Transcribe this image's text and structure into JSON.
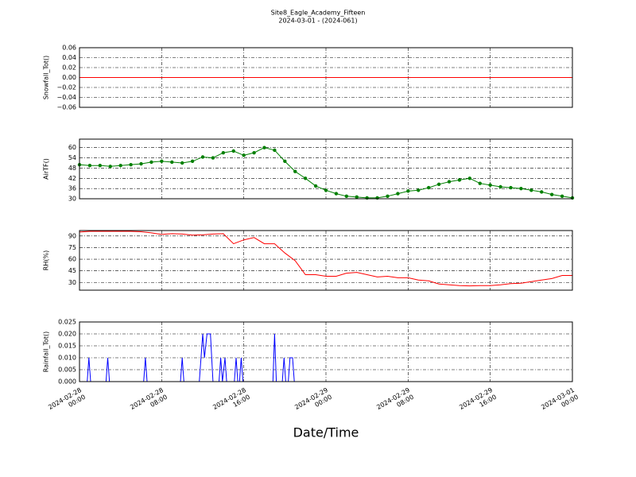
{
  "title": "Site8_Eagle_Academy_Fifteen",
  "subtitle": "2024-03-01 - (2024-061)",
  "x_axis": {
    "label": "Date/Time",
    "xlim": [
      "2024-02-28 00:00",
      "2024-03-01 00:00"
    ],
    "xticks": [
      {
        "value": "2024-02-28 00:00",
        "label": "2024-02-28\n00:00"
      },
      {
        "value": "2024-02-28 08:00",
        "label": "2024-02-28\n08:00"
      },
      {
        "value": "2024-02-28 16:00",
        "label": "2024-02-28\n16:00"
      },
      {
        "value": "2024-02-29 00:00",
        "label": "2024-02-29\n00:00"
      },
      {
        "value": "2024-02-29 08:00",
        "label": "2024-02-29\n08:00"
      },
      {
        "value": "2024-02-29 16:00",
        "label": "2024-02-29\n16:00"
      },
      {
        "value": "2024-03-01 00:00",
        "label": "2024-03-01\n00:00"
      }
    ]
  },
  "chart_data": [
    {
      "type": "line",
      "ylabel": "Snowfall_Tot()",
      "color": "#ff0000",
      "grid": true,
      "ylim": [
        -0.06,
        0.06
      ],
      "yticks": [
        {
          "value": -0.06,
          "label": "−0.06"
        },
        {
          "value": -0.04,
          "label": "−0.04"
        },
        {
          "value": -0.02,
          "label": "−0.02"
        },
        {
          "value": 0,
          "label": "0.00"
        },
        0.02,
        0.04,
        0.06
      ],
      "x": [
        "2024-02-28 00:00",
        "2024-03-01 00:00"
      ],
      "values": [
        0,
        0
      ]
    },
    {
      "type": "line",
      "ylabel": "AirTF()",
      "color": "#007f00",
      "marker": "o",
      "grid": true,
      "ylim": [
        30,
        65
      ],
      "yticks": [
        30,
        36,
        42,
        48,
        54,
        60
      ],
      "x": [
        "2024-02-28 00:00",
        "2024-02-28 01:00",
        "2024-02-28 02:00",
        "2024-02-28 03:00",
        "2024-02-28 04:00",
        "2024-02-28 05:00",
        "2024-02-28 06:00",
        "2024-02-28 07:00",
        "2024-02-28 08:00",
        "2024-02-28 09:00",
        "2024-02-28 10:00",
        "2024-02-28 11:00",
        "2024-02-28 12:00",
        "2024-02-28 13:00",
        "2024-02-28 14:00",
        "2024-02-28 15:00",
        "2024-02-28 16:00",
        "2024-02-28 17:00",
        "2024-02-28 18:00",
        "2024-02-28 19:00",
        "2024-02-28 20:00",
        "2024-02-28 21:00",
        "2024-02-28 22:00",
        "2024-02-28 23:00",
        "2024-02-29 00:00",
        "2024-02-29 01:00",
        "2024-02-29 02:00",
        "2024-02-29 03:00",
        "2024-02-29 04:00",
        "2024-02-29 05:00",
        "2024-02-29 06:00",
        "2024-02-29 07:00",
        "2024-02-29 08:00",
        "2024-02-29 09:00",
        "2024-02-29 10:00",
        "2024-02-29 11:00",
        "2024-02-29 12:00",
        "2024-02-29 13:00",
        "2024-02-29 14:00",
        "2024-02-29 15:00",
        "2024-02-29 16:00",
        "2024-02-29 17:00",
        "2024-02-29 18:00",
        "2024-02-29 19:00",
        "2024-02-29 20:00",
        "2024-02-29 21:00",
        "2024-02-29 22:00",
        "2024-02-29 23:00",
        "2024-03-01 00:00"
      ],
      "values": [
        50,
        49.5,
        49.5,
        49,
        49.5,
        50,
        50.5,
        51.5,
        52,
        51.5,
        51,
        52,
        54.5,
        54,
        57,
        58,
        55.5,
        57,
        60,
        58.5,
        52,
        46,
        42,
        37.5,
        35,
        33,
        31.5,
        31,
        30.5,
        30.5,
        31.5,
        33,
        34.5,
        35,
        36.5,
        38.5,
        40,
        41,
        42,
        39,
        38,
        37,
        36.5,
        36,
        35,
        34,
        32.5,
        31.5,
        30.5
      ]
    },
    {
      "type": "line",
      "ylabel": "RH(%)",
      "color": "#ff0000",
      "grid": true,
      "ylim": [
        20,
        97
      ],
      "yticks": [
        30,
        45,
        60,
        75,
        90
      ],
      "x": [
        "2024-02-28 00:00",
        "2024-02-28 01:00",
        "2024-02-28 02:00",
        "2024-02-28 03:00",
        "2024-02-28 04:00",
        "2024-02-28 05:00",
        "2024-02-28 06:00",
        "2024-02-28 07:00",
        "2024-02-28 08:00",
        "2024-02-28 09:00",
        "2024-02-28 10:00",
        "2024-02-28 11:00",
        "2024-02-28 12:00",
        "2024-02-28 13:00",
        "2024-02-28 14:00",
        "2024-02-28 15:00",
        "2024-02-28 16:00",
        "2024-02-28 17:00",
        "2024-02-28 18:00",
        "2024-02-28 19:00",
        "2024-02-28 20:00",
        "2024-02-28 21:00",
        "2024-02-28 22:00",
        "2024-02-28 23:00",
        "2024-02-29 00:00",
        "2024-02-29 01:00",
        "2024-02-29 02:00",
        "2024-02-29 03:00",
        "2024-02-29 04:00",
        "2024-02-29 05:00",
        "2024-02-29 06:00",
        "2024-02-29 07:00",
        "2024-02-29 08:00",
        "2024-02-29 09:00",
        "2024-02-29 10:00",
        "2024-02-29 11:00",
        "2024-02-29 12:00",
        "2024-02-29 13:00",
        "2024-02-29 14:00",
        "2024-02-29 15:00",
        "2024-02-29 16:00",
        "2024-02-29 17:00",
        "2024-02-29 18:00",
        "2024-02-29 19:00",
        "2024-02-29 20:00",
        "2024-02-29 21:00",
        "2024-02-29 22:00",
        "2024-02-29 23:00",
        "2024-03-01 00:00"
      ],
      "values": [
        95,
        96,
        96,
        96,
        96,
        96,
        95.5,
        94,
        92,
        93,
        92.5,
        91,
        91.5,
        92.5,
        93,
        80,
        85,
        88,
        80,
        80,
        68,
        58,
        40,
        40,
        38,
        38,
        42,
        43,
        40,
        37,
        38,
        36,
        36,
        33,
        32,
        28,
        27,
        26,
        25.5,
        26,
        26,
        27,
        28.5,
        29,
        31,
        33,
        35,
        39,
        39
      ]
    },
    {
      "type": "line",
      "ylabel": "Rainfall_Tot()",
      "color": "#0000ff",
      "grid": true,
      "ylim": [
        0,
        0.025
      ],
      "yticks": [
        {
          "value": 0,
          "label": "0.000"
        },
        0.005,
        {
          "value": 0.01,
          "label": "0.010"
        },
        0.015,
        {
          "value": 0.02,
          "label": "0.020"
        },
        0.025
      ],
      "x": [
        "2024-02-28 00:00",
        "2024-02-28 00:45",
        "2024-02-28 00:55",
        "2024-02-28 01:05",
        "2024-02-28 02:35",
        "2024-02-28 02:45",
        "2024-02-28 02:55",
        "2024-02-28 06:15",
        "2024-02-28 06:25",
        "2024-02-28 06:35",
        "2024-02-28 09:50",
        "2024-02-28 10:00",
        "2024-02-28 10:10",
        "2024-02-28 11:40",
        "2024-02-28 12:00",
        "2024-02-28 12:10",
        "2024-02-28 12:25",
        "2024-02-28 12:45",
        "2024-02-28 13:00",
        "2024-02-28 13:35",
        "2024-02-28 13:45",
        "2024-02-28 13:55",
        "2024-02-28 14:10",
        "2024-02-28 14:20",
        "2024-02-28 15:05",
        "2024-02-28 15:15",
        "2024-02-28 15:25",
        "2024-02-28 15:35",
        "2024-02-28 15:45",
        "2024-02-28 15:55",
        "2024-02-28 18:50",
        "2024-02-28 19:00",
        "2024-02-28 19:10",
        "2024-02-28 19:45",
        "2024-02-28 19:55",
        "2024-02-28 20:05",
        "2024-02-28 20:20",
        "2024-02-28 20:30",
        "2024-02-28 20:45",
        "2024-02-28 20:55",
        "2024-03-01 00:00"
      ],
      "values": [
        0,
        0,
        0.01,
        0,
        0,
        0.01,
        0,
        0,
        0.01,
        0,
        0,
        0.01,
        0,
        0,
        0.02,
        0.01,
        0.02,
        0.02,
        0,
        0,
        0.01,
        0,
        0.01,
        0,
        0,
        0.01,
        0,
        0,
        0.01,
        0,
        0,
        0.02,
        0,
        0,
        0.01,
        0,
        0,
        0.01,
        0.01,
        0,
        0
      ]
    }
  ]
}
